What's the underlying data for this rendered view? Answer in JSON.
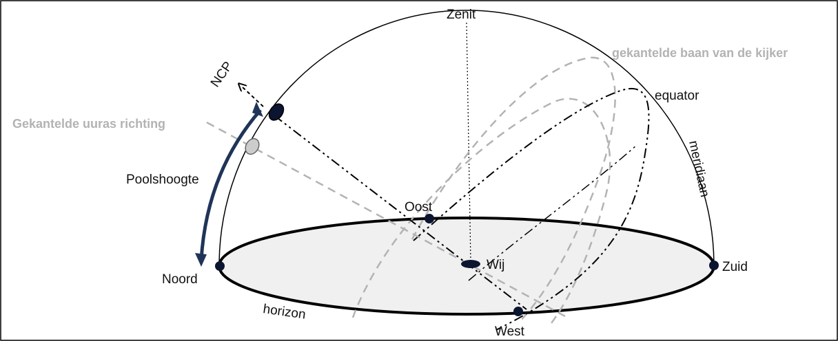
{
  "labels": {
    "zenit": "Zenit",
    "ncp": "NCP",
    "tilted_observer_path": "gekantelde baan van de kijker",
    "equator": "equator",
    "tilted_hour_axis": "Gekantelde uuras richting",
    "meridian": "meridiaan",
    "pole_height": "Poolshoogte",
    "east": "Oost",
    "we": "Wij",
    "north": "Noord",
    "south": "Zuid",
    "horizon": "horizon",
    "west": "West"
  },
  "colors": {
    "ink": "#000000",
    "grey_line": "#b3b3b3",
    "grey_text": "#b3b3b3",
    "horizon_fill": "#f0f0f0",
    "pole_arrow": "#1f3458",
    "marker_fill": "#0b1530",
    "tilted_pole_fill": "#cccccc"
  }
}
